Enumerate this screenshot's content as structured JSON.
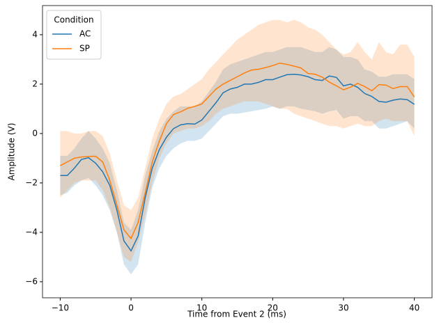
{
  "chart_data": {
    "type": "line",
    "x_label": "Time from Event 2 (ms)",
    "y_label": "Amplitude (V)",
    "legend_title": "Condition",
    "legend": "upper left",
    "x": [
      -10,
      -9,
      -8,
      -7,
      -6,
      -5,
      -4,
      -3,
      -2,
      -1,
      0,
      1,
      2,
      3,
      4,
      5,
      6,
      7,
      8,
      9,
      10,
      11,
      12,
      13,
      14,
      15,
      16,
      17,
      18,
      19,
      20,
      21,
      22,
      23,
      24,
      25,
      26,
      27,
      28,
      29,
      30,
      31,
      32,
      33,
      34,
      35,
      36,
      37,
      38,
      39,
      40
    ],
    "series": [
      {
        "name": "AC",
        "color": "#1f77b4",
        "values": [
          -1.7,
          -1.7,
          -1.4,
          -1.05,
          -0.98,
          -1.2,
          -1.55,
          -2.1,
          -3.1,
          -4.35,
          -4.75,
          -4.15,
          -2.6,
          -1.4,
          -0.65,
          -0.15,
          0.2,
          0.35,
          0.4,
          0.38,
          0.55,
          0.9,
          1.25,
          1.65,
          1.8,
          1.87,
          2.0,
          2.0,
          2.07,
          2.18,
          2.18,
          2.28,
          2.38,
          2.4,
          2.37,
          2.3,
          2.18,
          2.15,
          2.33,
          2.27,
          1.93,
          2.0,
          1.87,
          1.62,
          1.5,
          1.3,
          1.27,
          1.35,
          1.4,
          1.37,
          1.18
        ],
        "lower": [
          -2.5,
          -2.4,
          -2.1,
          -1.9,
          -1.8,
          -2.1,
          -2.5,
          -3.1,
          -4.0,
          -5.3,
          -5.7,
          -5.3,
          -3.6,
          -2.2,
          -1.4,
          -0.9,
          -0.6,
          -0.4,
          -0.3,
          -0.3,
          -0.2,
          0.1,
          0.4,
          0.7,
          0.8,
          0.8,
          0.85,
          0.9,
          0.95,
          1.0,
          1.1,
          1.0,
          1.1,
          1.1,
          1.0,
          0.95,
          0.9,
          0.8,
          0.9,
          0.95,
          0.6,
          0.7,
          0.7,
          0.5,
          0.5,
          0.2,
          0.2,
          0.3,
          0.4,
          0.5,
          0.2
        ],
        "upper": [
          -0.9,
          -0.9,
          -0.6,
          -0.2,
          0.1,
          -0.2,
          -0.6,
          -1.2,
          -2.3,
          -3.6,
          -3.9,
          -3.1,
          -1.7,
          -0.7,
          0.1,
          0.6,
          0.9,
          1.1,
          1.1,
          1.1,
          1.3,
          1.7,
          2.1,
          2.6,
          2.8,
          2.9,
          3.0,
          3.1,
          3.2,
          3.3,
          3.3,
          3.4,
          3.5,
          3.5,
          3.5,
          3.4,
          3.3,
          3.3,
          3.5,
          3.4,
          3.1,
          3.1,
          3.0,
          2.6,
          2.5,
          2.3,
          2.3,
          2.4,
          2.4,
          2.4,
          2.2
        ]
      },
      {
        "name": "SP",
        "color": "#ff7f0e",
        "values": [
          -1.3,
          -1.15,
          -1.0,
          -0.95,
          -0.93,
          -0.92,
          -1.15,
          -1.9,
          -2.9,
          -3.9,
          -4.25,
          -3.6,
          -2.4,
          -1.15,
          -0.3,
          0.4,
          0.77,
          0.88,
          1.02,
          1.1,
          1.2,
          1.5,
          1.8,
          2.0,
          2.15,
          2.3,
          2.45,
          2.57,
          2.6,
          2.67,
          2.75,
          2.85,
          2.8,
          2.73,
          2.65,
          2.43,
          2.4,
          2.28,
          2.08,
          1.93,
          1.77,
          1.88,
          2.03,
          1.9,
          1.73,
          1.98,
          1.96,
          1.82,
          1.9,
          1.9,
          1.48
        ],
        "lower": [
          -2.6,
          -2.3,
          -2.0,
          -1.9,
          -1.9,
          -1.9,
          -2.3,
          -3.0,
          -4.0,
          -5.0,
          -5.2,
          -4.4,
          -3.3,
          -2.0,
          -1.0,
          -0.4,
          0.0,
          0.1,
          0.2,
          0.2,
          0.3,
          0.5,
          0.8,
          1.0,
          1.1,
          1.2,
          1.3,
          1.3,
          1.3,
          1.2,
          1.1,
          1.0,
          1.0,
          0.8,
          0.7,
          0.6,
          0.5,
          0.4,
          0.3,
          0.3,
          0.2,
          0.3,
          0.4,
          0.3,
          0.3,
          0.5,
          0.6,
          0.5,
          0.5,
          0.5,
          -0.1
        ],
        "upper": [
          0.1,
          0.1,
          0.0,
          0.0,
          0.1,
          0.1,
          -0.1,
          -0.8,
          -1.9,
          -2.9,
          -3.1,
          -2.6,
          -1.4,
          -0.2,
          0.6,
          1.2,
          1.5,
          1.6,
          1.8,
          2.0,
          2.2,
          2.6,
          2.9,
          3.2,
          3.5,
          3.8,
          4.0,
          4.2,
          4.4,
          4.5,
          4.6,
          4.6,
          4.5,
          4.6,
          4.5,
          4.3,
          4.2,
          4.0,
          3.7,
          3.4,
          3.2,
          3.3,
          3.7,
          3.3,
          3.0,
          3.7,
          3.3,
          3.2,
          3.6,
          3.6,
          3.1
        ]
      }
    ],
    "xlim": [
      -12.5,
      42.5
    ],
    "xticks": [
      {
        "value": -10,
        "label": "−10"
      },
      0,
      10,
      20,
      30,
      40
    ],
    "ylim": [
      -6.65,
      5.18
    ],
    "yticks": [
      {
        "value": -6,
        "label": "−6"
      },
      {
        "value": -4,
        "label": "−4"
      },
      {
        "value": -2,
        "label": "−2"
      },
      0,
      2,
      4
    ]
  }
}
